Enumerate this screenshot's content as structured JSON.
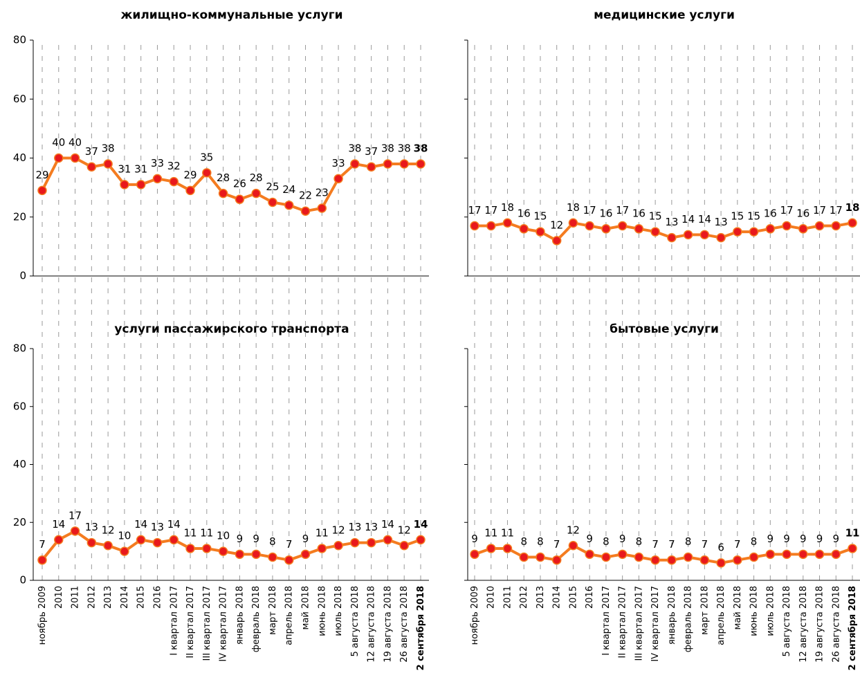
{
  "chart_data": [
    {
      "type": "line",
      "title": "жилищно-коммунальные услуги",
      "ylim": [
        0,
        80
      ],
      "yticks": [
        0,
        20,
        40,
        60,
        80
      ],
      "series": [
        {
          "name": null,
          "color": "#f47c20",
          "marker_color": "#e8191c",
          "values": [
            29,
            40,
            40,
            37,
            38,
            31,
            31,
            33,
            32,
            29,
            35,
            28,
            26,
            28,
            25,
            24,
            22,
            23,
            33,
            38,
            37,
            38,
            38,
            38
          ]
        }
      ]
    },
    {
      "type": "line",
      "title": "медицинские услуги",
      "ylim": [
        0,
        80
      ],
      "series": [
        {
          "name": null,
          "color": "#f47c20",
          "marker_color": "#e8191c",
          "values": [
            17,
            17,
            18,
            16,
            15,
            12,
            18,
            17,
            16,
            17,
            16,
            15,
            13,
            14,
            14,
            13,
            15,
            15,
            16,
            17,
            16,
            17,
            17,
            18
          ]
        }
      ]
    },
    {
      "type": "line",
      "title": "услуги пассажирского транспорта",
      "ylim": [
        0,
        80
      ],
      "yticks": [
        0,
        20,
        40,
        60,
        80
      ],
      "categories": [
        "ноябрь 2009",
        "2010",
        "2011",
        "2012",
        "2013",
        "2014",
        "2015",
        "2016",
        "I квартал 2017",
        "II квартал 2017",
        "III квартал 2017",
        "IV квартал 2017",
        "январь 2018",
        "февраль 2018",
        "март 2018",
        "апрель 2018",
        "май 2018",
        "июнь 2018",
        "июль 2018",
        "5 августа 2018",
        "12 августа 2018",
        "19 августа 2018",
        "26 августа 2018",
        "2 сентября 2018"
      ],
      "series": [
        {
          "name": null,
          "color": "#f47c20",
          "marker_color": "#e8191c",
          "values": [
            7,
            14,
            17,
            13,
            12,
            10,
            14,
            13,
            14,
            11,
            11,
            10,
            9,
            9,
            8,
            7,
            9,
            11,
            12,
            13,
            13,
            14,
            12,
            14
          ]
        }
      ]
    },
    {
      "type": "line",
      "title": "бытовые услуги",
      "ylim": [
        0,
        80
      ],
      "categories": [
        "ноябрь 2009",
        "2010",
        "2011",
        "2012",
        "2013",
        "2014",
        "2015",
        "2016",
        "I квартал 2017",
        "II квартал 2017",
        "III квартал 2017",
        "IV квартал 2017",
        "январь 2018",
        "февраль 2018",
        "март 2018",
        "апрель 2018",
        "май 2018",
        "июнь 2018",
        "июль 2018",
        "5 августа 2018",
        "12 августа 2018",
        "19 августа 2018",
        "26 августа 2018",
        "2 сентября 2018"
      ],
      "series": [
        {
          "name": null,
          "color": "#f47c20",
          "marker_color": "#e8191c",
          "values": [
            9,
            11,
            11,
            8,
            8,
            7,
            12,
            9,
            8,
            9,
            8,
            7,
            7,
            8,
            7,
            6,
            7,
            8,
            9,
            9,
            9,
            9,
            9,
            11
          ]
        }
      ]
    }
  ]
}
